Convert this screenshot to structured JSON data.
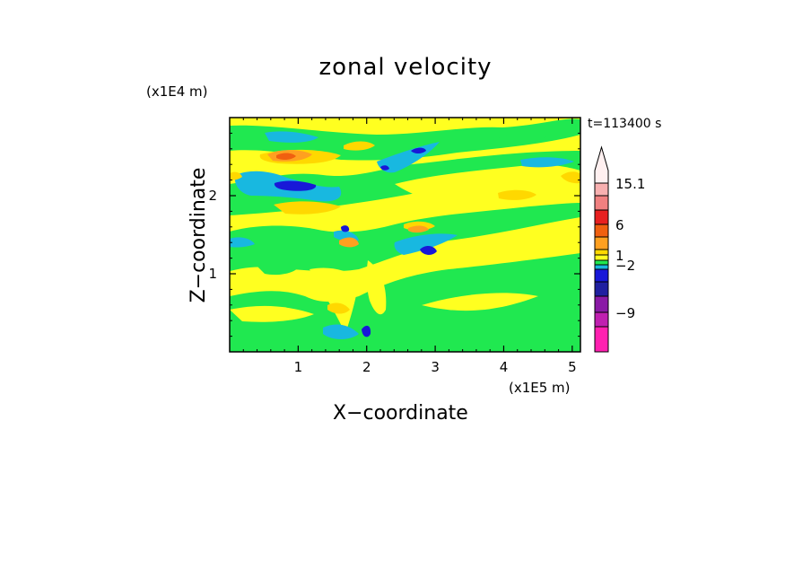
{
  "chart_data": {
    "type": "heatmap",
    "title": "zonal velocity",
    "xlabel": "X−coordinate",
    "ylabel": "Z−coordinate",
    "x_multiplier": "(x1E5 m)",
    "y_multiplier": "(x1E4 m)",
    "time_label": "t=113400 s",
    "xlim": [
      0,
      5.12
    ],
    "ylim": [
      0,
      3.0
    ],
    "x_ticks": [
      "1",
      "2",
      "3",
      "4",
      "5"
    ],
    "y_ticks": [
      "1",
      "2"
    ],
    "colorbar": {
      "labels": [
        "15.1",
        "6",
        "1",
        "−2",
        "−9"
      ],
      "levels": [
        {
          "color": "#ff20b0"
        },
        {
          "color": "#c020b0"
        },
        {
          "color": "#8a1aa6"
        },
        {
          "color": "#2020a0"
        },
        {
          "color": "#1818d8"
        },
        {
          "color": "#18b8e0"
        },
        {
          "color": "#20e850"
        },
        {
          "color": "#ffff20"
        },
        {
          "color": "#ffd800"
        },
        {
          "color": "#ffa020"
        },
        {
          "color": "#f06010"
        },
        {
          "color": "#e82020"
        },
        {
          "color": "#f08080"
        },
        {
          "color": "#f8b0b0"
        },
        {
          "color": "#fff0f0"
        }
      ]
    },
    "field_colors": {
      "background": "#ffff20",
      "weak_negative": "#20e850",
      "moderate_negative": "#18b8e0",
      "strong_negative": "#1818d8",
      "weak_positive": "#ffd800",
      "moderate_positive": "#ffa020",
      "strong_positive": "#f06010"
    }
  }
}
